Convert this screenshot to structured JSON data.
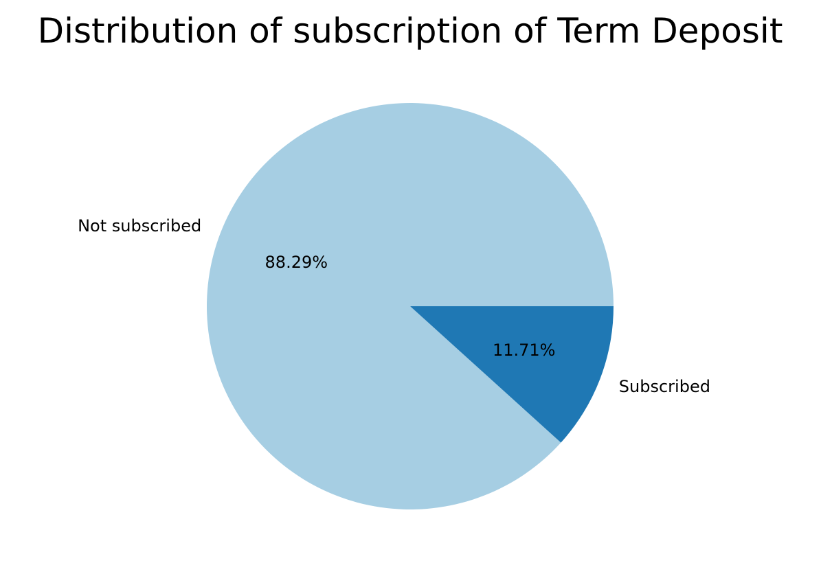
{
  "chart_data": {
    "type": "pie",
    "title": "Distribution of subscription of Term Deposit",
    "labels": [
      "Not subscribed",
      "Subscribed"
    ],
    "values": [
      88.29,
      11.71
    ],
    "value_labels": [
      "88.29%",
      "11.71%"
    ],
    "colors": [
      "#a6cee3",
      "#1f78b4"
    ],
    "start_angle_deg": 0,
    "direction": "counterclockwise",
    "legend": "none"
  }
}
